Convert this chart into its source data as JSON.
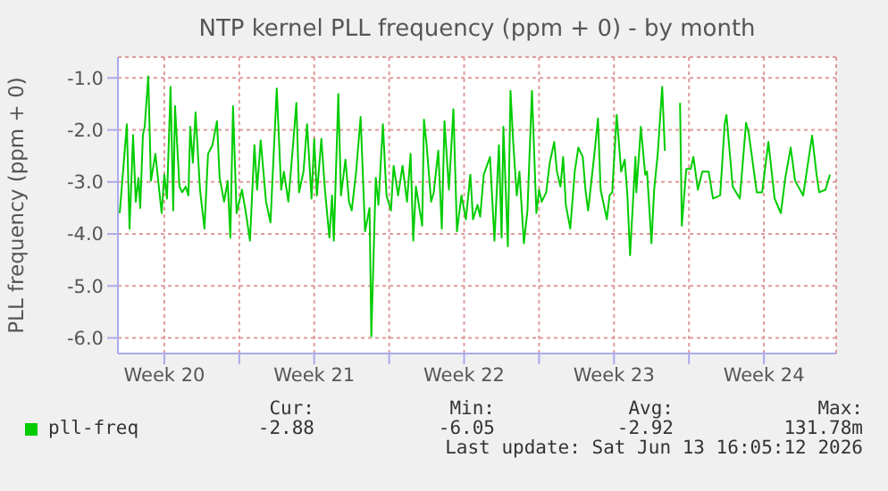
{
  "chart_data": {
    "type": "line",
    "title": "NTP kernel PLL frequency (ppm + 0) - by month",
    "ylabel": "PLL frequency (ppm + 0)",
    "series": [
      {
        "name": "pll-freq",
        "color": "#00cc00",
        "x": [
          "2026-05-12T10:00",
          "2026-05-12T18:00",
          "2026-05-12T21:00",
          "2026-05-13T01:00",
          "2026-05-13T04:00",
          "2026-05-13T07:00",
          "2026-05-13T09:00",
          "2026-05-13T12:00",
          "2026-05-13T14:00",
          "2026-05-13T18:00",
          "2026-05-13T21:00",
          "2026-05-14T02:00",
          "2026-05-14T09:00",
          "2026-05-14T12:00",
          "2026-05-14T15:00",
          "2026-05-14T19:00",
          "2026-05-14T22:00",
          "2026-05-15T00:00",
          "2026-05-15T05:00",
          "2026-05-15T08:00",
          "2026-05-15T12:00",
          "2026-05-15T15:00",
          "2026-05-15T17:00",
          "2026-05-15T20:00",
          "2026-05-15T23:00",
          "2026-05-16T04:00",
          "2026-05-16T09:00",
          "2026-05-16T13:00",
          "2026-05-16T18:00",
          "2026-05-16T23:00",
          "2026-05-17T02:00",
          "2026-05-17T07:00",
          "2026-05-17T11:00",
          "2026-05-17T14:00",
          "2026-05-17T17:00",
          "2026-05-17T21:00",
          "2026-05-18T03:00",
          "2026-05-18T07:00",
          "2026-05-18T12:00",
          "2026-05-18T17:00",
          "2026-05-18T20:00",
          "2026-05-19T00:00",
          "2026-05-19T06:00",
          "2026-05-19T11:00",
          "2026-05-19T18:00",
          "2026-05-19T23:00",
          "2026-05-20T02:00",
          "2026-05-20T07:00",
          "2026-05-20T12:00",
          "2026-05-20T16:00",
          "2026-05-20T19:00",
          "2026-05-21T00:00",
          "2026-05-21T04:00",
          "2026-05-21T09:00",
          "2026-05-21T12:00",
          "2026-05-21T15:00",
          "2026-05-21T20:00",
          "2026-05-22T00:00",
          "2026-05-22T05:00",
          "2026-05-22T08:00",
          "2026-05-22T10:00",
          "2026-05-22T15:00",
          "2026-05-22T18:00",
          "2026-05-22T23:00",
          "2026-05-23T03:00",
          "2026-05-23T06:00",
          "2026-05-23T11:00",
          "2026-05-23T16:00",
          "2026-05-23T21:00",
          "2026-05-24T02:00",
          "2026-05-24T04:00",
          "2026-05-24T09:00",
          "2026-05-24T12:00",
          "2026-05-24T17:00",
          "2026-05-24T21:00",
          "2026-05-25T02:00",
          "2026-05-25T05:00",
          "2026-05-25T10:00",
          "2026-05-25T15:00",
          "2026-05-25T20:00",
          "2026-05-26T00:00",
          "2026-05-26T03:00",
          "2026-05-26T06:00",
          "2026-05-26T13:00",
          "2026-05-26T15:00",
          "2026-05-26T18:00",
          "2026-05-26T23:00",
          "2026-05-27T02:00",
          "2026-05-27T07:00",
          "2026-05-27T11:00",
          "2026-05-27T14:00",
          "2026-05-27T19:00",
          "2026-05-28T00:00",
          "2026-05-28T04:00",
          "2026-05-28T09:00",
          "2026-05-28T14:00",
          "2026-05-28T19:00",
          "2026-05-28T22:00",
          "2026-05-29T03:00",
          "2026-05-29T06:00",
          "2026-05-29T10:00",
          "2026-05-29T17:00",
          "2026-05-29T22:00",
          "2026-05-30T03:00",
          "2026-05-30T06:00",
          "2026-05-30T08:00",
          "2026-05-30T13:00",
          "2026-05-30T16:00",
          "2026-05-30T19:00",
          "2026-05-30T23:00",
          "2026-05-31T02:00",
          "2026-05-31T07:00",
          "2026-05-31T11:00",
          "2026-05-31T16:00",
          "2026-05-31T21:00",
          "2026-06-01T00:00",
          "2026-06-01T03:00",
          "2026-06-01T08:00",
          "2026-06-01T12:00",
          "2026-06-01T17:00",
          "2026-06-01T20:00",
          "2026-06-02T00:00",
          "2026-06-02T03:00",
          "2026-06-02T06:00",
          "2026-06-02T11:00",
          "2026-06-02T16:00",
          "2026-06-02T20:00",
          "2026-06-03T01:00",
          "2026-06-03T04:00",
          "2026-06-03T07:00",
          "2026-06-03T14:00",
          "2026-06-03T18:00",
          "2026-06-03T21:00",
          "2026-06-04T04:00",
          "2026-06-04T07:00",
          "2026-06-04T10:00",
          "2026-06-04T15:00",
          "2026-06-04T20:00",
          "2026-06-05T00:00",
          "2026-06-05T03:00",
          "2026-06-05T06:00",
          "2026-06-05T12:00",
          "2026-06-05T13:00",
          "2026-06-05T17:00",
          "2026-06-05T18:00",
          "2026-06-05T23:00",
          "2026-06-06T01:00",
          "2026-06-06T06:00",
          "2026-06-06T09:00",
          "2026-06-06T13:00",
          "2026-06-06T18:00",
          "2026-06-06T21:00",
          "2026-06-07T04:00",
          "2026-06-07T14:00",
          "2026-06-07T16:00",
          "2026-06-07T21:00",
          "2026-06-08T02:00",
          "2026-06-08T05:00",
          "2026-06-08T10:00",
          "2026-06-08T15:00",
          "2026-06-08T22:00",
          "2026-06-09T03:00",
          "2026-06-09T11:00",
          "2026-06-09T16:00",
          "2026-06-09T18:00",
          "2026-06-10T01:00",
          "2026-06-10T09:00",
          "2026-06-10T16:00",
          "2026-06-10T19:00",
          "2026-06-11T04:00",
          "2026-06-11T10:00",
          "2026-06-11T17:00",
          "2026-06-12T00:00",
          "2026-06-12T07:00",
          "2026-06-12T12:00",
          "2026-06-12T18:00",
          "2026-06-12T23:00",
          "2026-06-13T08:00",
          "2026-06-13T18:00",
          "2026-06-13T23:00",
          "2026-06-14T02:00",
          "2026-06-14T09:00",
          "2026-06-14T14:00"
        ],
        "values": [
          -3.6,
          -1.89,
          -3.9,
          -2.1,
          -3.38,
          -2.92,
          -3.5,
          -2.1,
          -1.94,
          -0.97,
          -2.98,
          -2.46,
          -3.6,
          -2.86,
          -3.32,
          -1.17,
          -3.55,
          -1.54,
          -3.09,
          -3.2,
          -3.09,
          -3.26,
          -1.94,
          -2.63,
          -1.66,
          -3.15,
          -3.9,
          -2.46,
          -2.29,
          -1.83,
          -2.92,
          -3.38,
          -2.98,
          -4.07,
          -1.54,
          -3.6,
          -3.15,
          -3.55,
          -4.13,
          -2.29,
          -3.15,
          -2.2,
          -3.38,
          -3.78,
          -1.2,
          -3.15,
          -2.8,
          -3.38,
          -2.34,
          -1.48,
          -3.2,
          -2.8,
          -1.89,
          -3.32,
          -2.17,
          -3.26,
          -2.17,
          -3.15,
          -4.07,
          -3.26,
          -4.13,
          -1.31,
          -3.26,
          -2.57,
          -3.38,
          -3.55,
          -2.8,
          -1.75,
          -3.95,
          -3.5,
          -5.97,
          -2.92,
          -3.44,
          -1.89,
          -3.26,
          -3.55,
          -2.69,
          -3.26,
          -2.69,
          -3.38,
          -2.46,
          -4.13,
          -3.09,
          -3.84,
          -1.8,
          -2.29,
          -3.38,
          -3.2,
          -2.4,
          -3.9,
          -1.83,
          -3.15,
          -1.6,
          -3.95,
          -3.26,
          -3.72,
          -2.86,
          -3.72,
          -3.44,
          -3.67,
          -2.86,
          -2.52,
          -4.13,
          -2.29,
          -4.07,
          -1.94,
          -4.24,
          -1.25,
          -2.23,
          -3.26,
          -2.8,
          -4.18,
          -3.55,
          -1.25,
          -3.6,
          -3.15,
          -3.38,
          -3.2,
          -2.63,
          -2.23,
          -2.8,
          -3.09,
          -2.52,
          -3.44,
          -3.9,
          -2.8,
          -2.34,
          -2.52,
          -3.15,
          -3.55,
          -2.46,
          -1.78,
          -3.15,
          -3.72,
          -3.26,
          -3.2,
          -1.71,
          -2.8,
          -2.57,
          -3.26,
          -4.41,
          -2.52,
          -3.2,
          -2.23,
          -1.94,
          -2.86,
          -2.8,
          -4.18,
          -3.15,
          -2.46,
          -1.17,
          -2.4,
          null,
          -1.48,
          -3.84,
          -2.75,
          -2.75,
          -2.52,
          -3.15,
          -2.8,
          -2.8,
          -3.32,
          -3.26,
          -1.89,
          -1.71,
          -3.09,
          -3.32,
          -1.86,
          -2.06,
          -3.2,
          -3.2,
          -2.23,
          -3.32,
          -3.6,
          -2.92,
          -2.34,
          -2.98,
          -3.26,
          -2.11,
          -2.86,
          -3.2,
          -3.15,
          -2.86
        ]
      }
    ],
    "xlim": [
      "2026-05-12T08:00",
      "2026-06-14T21:00"
    ],
    "xticks": [
      {
        "value": "2026-05-14T12:00",
        "label": "Week 20"
      },
      {
        "value": "2026-05-18",
        "label": null
      },
      {
        "value": "2026-05-21T12:00",
        "label": "Week 21"
      },
      {
        "value": "2026-05-25",
        "label": null
      },
      {
        "value": "2026-05-28T12:00",
        "label": "Week 22"
      },
      {
        "value": "2026-06-01",
        "label": null
      },
      {
        "value": "2026-06-04T12:00",
        "label": "Week 23"
      },
      {
        "value": "2026-06-08",
        "label": null
      },
      {
        "value": "2026-06-11T12:00",
        "label": "Week 24"
      }
    ],
    "ylim": [
      -6.3,
      -0.6
    ],
    "yticks": [
      {
        "value": -6,
        "label": "-6.0"
      },
      {
        "value": -5,
        "label": "-5.0"
      },
      {
        "value": -4,
        "label": "-4.0"
      },
      {
        "value": -3,
        "label": "-3.0"
      },
      {
        "value": -2,
        "label": "-2.0"
      },
      {
        "value": -1,
        "label": "-1.0"
      }
    ],
    "grid": true,
    "legend": "bottom left",
    "marker": "none",
    "line_style": "solid",
    "annotations": [
      "Cur:",
      "Min:",
      "Avg:",
      "Max:",
      "-2.88",
      "-6.05",
      "-2.92",
      "131.78m",
      "Last update: Sat Jun 13 16:05:12 2026"
    ]
  }
}
